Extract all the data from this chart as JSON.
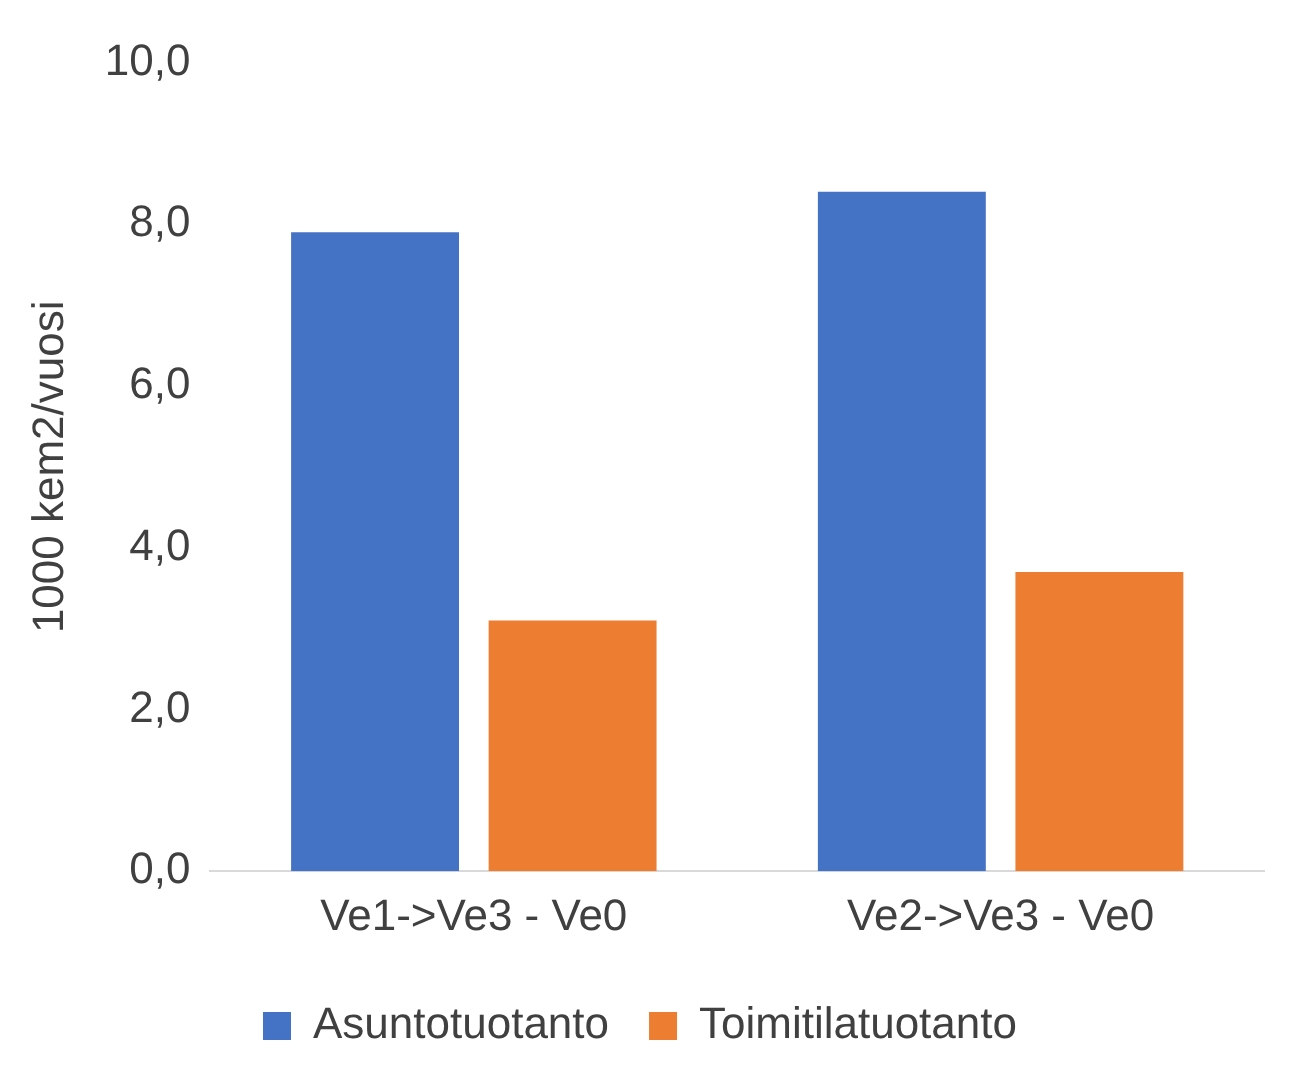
{
  "chart_data": {
    "type": "bar",
    "ylabel": "1000 kem2/vuosi",
    "categories": [
      "Ve1->Ve3 - Ve0",
      "Ve2->Ve3 - Ve0"
    ],
    "series": [
      {
        "name": "Asuntotuotanto",
        "color": "#4472c4",
        "values": [
          7.9,
          8.4
        ]
      },
      {
        "name": "Toimitilatuotanto",
        "color": "#ed7d31",
        "values": [
          3.1,
          3.7
        ]
      }
    ],
    "ylim": [
      0,
      10
    ],
    "yticks": [
      {
        "value": 0,
        "label": "0,0"
      },
      {
        "value": 2,
        "label": "2,0"
      },
      {
        "value": 4,
        "label": "4,0"
      },
      {
        "value": 6,
        "label": "6,0"
      },
      {
        "value": 8,
        "label": "8,0"
      },
      {
        "value": 10,
        "label": "10,0"
      }
    ],
    "grid": false,
    "legend": "bottom"
  }
}
